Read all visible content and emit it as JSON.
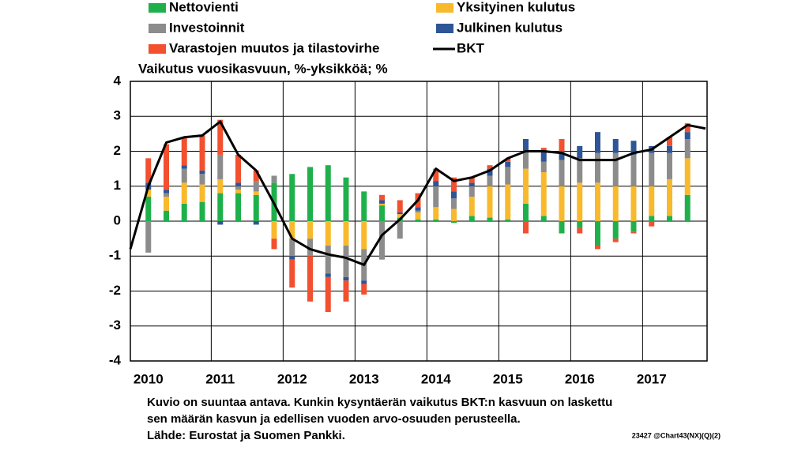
{
  "chart_data": {
    "type": "bar",
    "stacked": true,
    "subtitle": "Vaikutus vuosikasvuun, %-yksikköä; %",
    "categories": [
      null,
      "2010",
      null,
      null,
      null,
      "2011",
      null,
      null,
      null,
      "2012",
      null,
      null,
      null,
      "2013",
      null,
      null,
      null,
      "2014",
      null,
      null,
      null,
      "2015",
      null,
      null,
      null,
      "2016",
      null,
      null,
      null,
      "2017",
      null,
      null,
      null
    ],
    "series": [
      {
        "name": "Nettovienti",
        "color": "#1fb04b",
        "values": [
          null,
          0.7,
          0.3,
          0.5,
          0.55,
          0.8,
          0.8,
          0.75,
          1.1,
          1.35,
          1.55,
          1.6,
          1.25,
          0.85,
          0.45,
          0.1,
          0.05,
          0.05,
          -0.05,
          0.15,
          0.1,
          0.05,
          0.5,
          0.15,
          -0.35,
          -0.2,
          -0.7,
          -0.5,
          -0.3,
          0.15,
          0.15,
          0.75,
          null
        ]
      },
      {
        "name": "Yksityinen kulutus",
        "color": "#f9b92c",
        "values": [
          null,
          0.2,
          0.4,
          0.6,
          0.5,
          0.4,
          0.1,
          0.1,
          -0.5,
          -0.5,
          -0.5,
          -0.7,
          -0.7,
          -0.8,
          0.05,
          0.1,
          0.2,
          0.35,
          0.35,
          0.55,
          0.9,
          1.0,
          1.0,
          1.25,
          1.0,
          1.1,
          1.1,
          1.0,
          1.0,
          0.85,
          1.05,
          1.05,
          null
        ]
      },
      {
        "name": "Investoinnit",
        "color": "#8c8c8c",
        "values": [
          null,
          -0.9,
          0.1,
          0.4,
          0.3,
          0.7,
          0.1,
          0.3,
          0.2,
          -0.5,
          -0.5,
          -0.8,
          -0.9,
          -0.9,
          -1.1,
          -0.5,
          0.05,
          0.6,
          0.3,
          0.3,
          0.3,
          0.5,
          0.5,
          0.3,
          0.75,
          0.7,
          0.85,
          0.95,
          0.9,
          0.95,
          0.75,
          0.55,
          null
        ]
      },
      {
        "name": "Julkinen kulutus",
        "color": "#2e5596",
        "values": [
          null,
          0.2,
          0.1,
          0.1,
          0.1,
          -0.1,
          0.1,
          -0.1,
          0,
          -0.1,
          0,
          -0.1,
          -0.1,
          -0.1,
          0.1,
          0.05,
          0.1,
          0.15,
          0.2,
          0.1,
          0.2,
          0.15,
          0.35,
          0.3,
          0.25,
          0.35,
          0.6,
          0.4,
          0.4,
          0.2,
          0.2,
          0.2,
          null
        ]
      },
      {
        "name": "Varastojen muutos ja tilastovirhe",
        "color": "#f2502f",
        "values": [
          null,
          0.7,
          1.3,
          0.8,
          1.0,
          1.0,
          0.8,
          0.3,
          -0.3,
          -0.8,
          -1.3,
          -1.0,
          -0.6,
          -0.3,
          0.15,
          0.35,
          0.4,
          0.35,
          0.4,
          0.15,
          0.1,
          0.1,
          -0.35,
          0.1,
          0.35,
          -0.15,
          -0.1,
          -0.1,
          -0.05,
          -0.15,
          0.25,
          0.25,
          null
        ]
      },
      {
        "name": "BKT",
        "color": "#000000",
        "type": "line",
        "values": [
          -0.8,
          1.0,
          2.25,
          2.4,
          2.45,
          2.85,
          1.9,
          1.45,
          0.5,
          -0.5,
          -0.8,
          -0.95,
          -1.05,
          -1.25,
          -0.4,
          0.05,
          0.6,
          1.5,
          1.15,
          1.25,
          1.45,
          1.8,
          2.0,
          2.0,
          1.95,
          1.75,
          1.75,
          1.75,
          1.95,
          2.05,
          2.4,
          2.75,
          2.65
        ]
      }
    ],
    "ylim": [
      -4,
      4
    ],
    "yticks": [
      -4,
      -3,
      -2,
      -1,
      0,
      1,
      2,
      3,
      4
    ],
    "grid": true,
    "notes": [
      "Kuvio on suuntaa antava. Kunkin kysyntäerän vaikutus BKT:n kasvuun on laskettu",
      "sen määrän kasvun ja edellisen vuoden arvo-osuuden perusteella.",
      "Lähde: Eurostat ja Suomen Pankki."
    ],
    "code": "23427 @Chart43(NX)(Q)(2)"
  }
}
